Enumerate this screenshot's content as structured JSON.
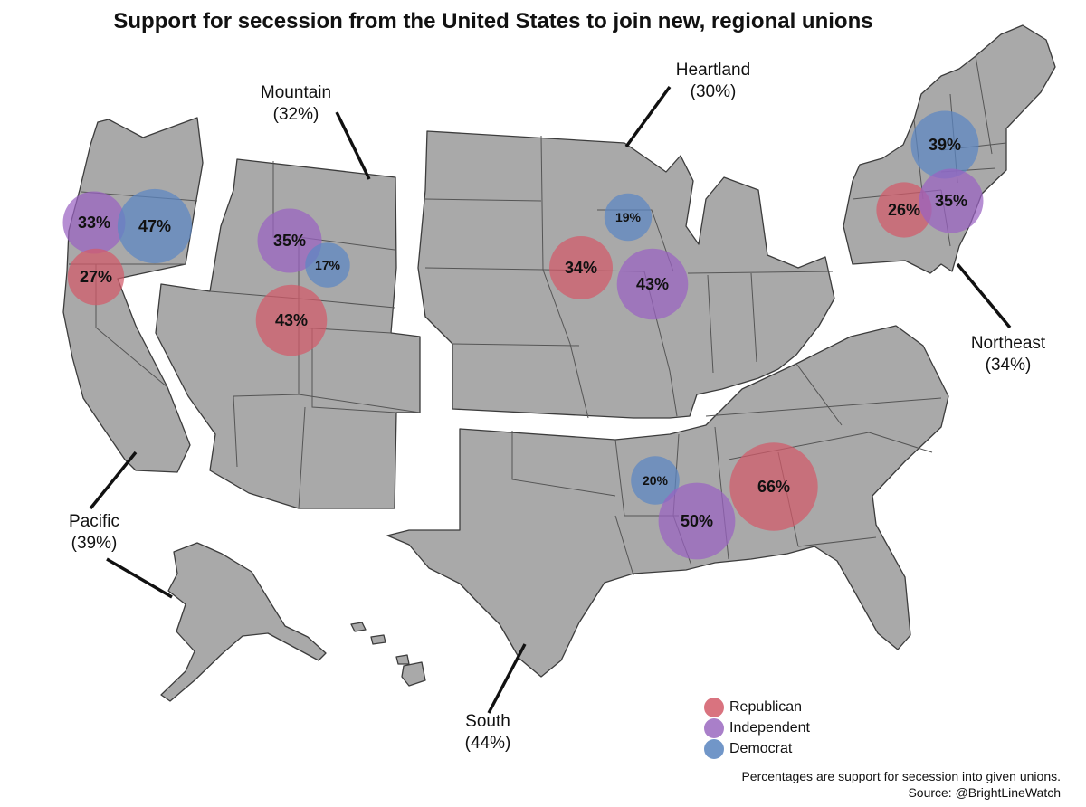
{
  "title": "Support for secession from the United States to join new, regional unions",
  "regions": [
    {
      "name": "Mountain",
      "overall": "(32%)"
    },
    {
      "name": "Heartland",
      "overall": "(30%)"
    },
    {
      "name": "Northeast",
      "overall": "(34%)"
    },
    {
      "name": "Pacific",
      "overall": "(39%)"
    },
    {
      "name": "South",
      "overall": "(44%)"
    }
  ],
  "bubbles": [
    {
      "region": "Pacific",
      "party": "Independent",
      "value": 33,
      "label": "33%"
    },
    {
      "region": "Pacific",
      "party": "Democrat",
      "value": 47,
      "label": "47%"
    },
    {
      "region": "Pacific",
      "party": "Republican",
      "value": 27,
      "label": "27%"
    },
    {
      "region": "Mountain",
      "party": "Independent",
      "value": 35,
      "label": "35%"
    },
    {
      "region": "Mountain",
      "party": "Democrat",
      "value": 17,
      "label": "17%"
    },
    {
      "region": "Mountain",
      "party": "Republican",
      "value": 43,
      "label": "43%"
    },
    {
      "region": "Heartland",
      "party": "Democrat",
      "value": 19,
      "label": "19%"
    },
    {
      "region": "Heartland",
      "party": "Republican",
      "value": 34,
      "label": "34%"
    },
    {
      "region": "Heartland",
      "party": "Independent",
      "value": 43,
      "label": "43%"
    },
    {
      "region": "Northeast",
      "party": "Democrat",
      "value": 39,
      "label": "39%"
    },
    {
      "region": "Northeast",
      "party": "Republican",
      "value": 26,
      "label": "26%"
    },
    {
      "region": "Northeast",
      "party": "Independent",
      "value": 35,
      "label": "35%"
    },
    {
      "region": "South",
      "party": "Democrat",
      "value": 20,
      "label": "20%"
    },
    {
      "region": "South",
      "party": "Independent",
      "value": 50,
      "label": "50%"
    },
    {
      "region": "South",
      "party": "Republican",
      "value": 66,
      "label": "66%"
    }
  ],
  "legend": [
    {
      "label": "Republican",
      "color": "#d9737f"
    },
    {
      "label": "Independent",
      "color": "#a97fc9"
    },
    {
      "label": "Democrat",
      "color": "#7196c8"
    }
  ],
  "party_colors": {
    "Republican": "#d35a6a",
    "Independent": "#9a63c2",
    "Democrat": "#5b86c4"
  },
  "footnote": {
    "line1": "Percentages are support for secession into given unions.",
    "line2": "Source: @BrightLineWatch"
  }
}
